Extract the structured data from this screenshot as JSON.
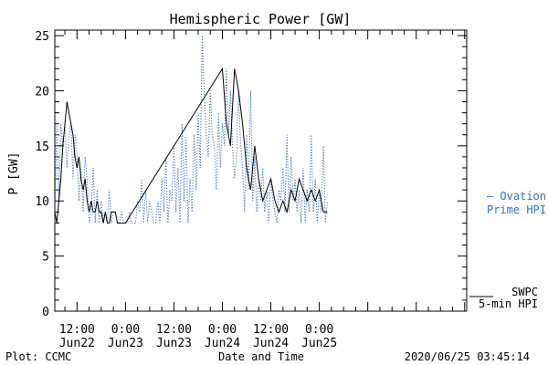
{
  "chart_data": {
    "type": "line",
    "title": "Hemispheric Power [GW]",
    "xlabel": "Date and Time",
    "ylabel": "P [GW]",
    "ylim": [
      0,
      25.5
    ],
    "y_ticks": [
      0,
      5,
      10,
      15,
      20,
      25
    ],
    "x_range_hours": [
      -17.5,
      84.5
    ],
    "x_tick_labels": [
      {
        "hour": -12,
        "line1": "12:00",
        "line2": "Jun22"
      },
      {
        "hour": 0,
        "line1": "0:00",
        "line2": "Jun23"
      },
      {
        "hour": 12,
        "line1": "12:00",
        "line2": "Jun23"
      },
      {
        "hour": 24,
        "line1": "0:00",
        "line2": "Jun24"
      },
      {
        "hour": 36,
        "line1": "12:00",
        "line2": "Jun24"
      },
      {
        "hour": 48,
        "line1": "0:00",
        "line2": "Jun25"
      }
    ],
    "series": [
      {
        "name": "Ovation Prime HPI",
        "color": "#2f6fc0",
        "style": "dotted",
        "x": [
          -17.5,
          -17,
          -16.5,
          -16,
          -15.5,
          -15,
          -14.5,
          -14,
          -13.5,
          -13,
          -12.5,
          -12,
          -11.5,
          -11,
          -10.5,
          -10,
          -9.5,
          -9,
          -8.5,
          -8,
          -7.5,
          -7,
          -6.5,
          -6,
          -5.5,
          -5,
          -4.5,
          -4,
          -3.5,
          -3,
          -2.5,
          -2,
          -1.5,
          -1,
          -0.5,
          0,
          0.5,
          1,
          1.5,
          2,
          2.5,
          3,
          3.5,
          4,
          4.5,
          5,
          5.5,
          6,
          6.5,
          7,
          7.5,
          8,
          8.5,
          9,
          9.5,
          10,
          10.5,
          11,
          11.5,
          12,
          12.5,
          13,
          13.5,
          14,
          14.5,
          15,
          15.5,
          16,
          16.5,
          17,
          17.5,
          18,
          18.5,
          19,
          19.5,
          20,
          20.5,
          21,
          21.5,
          22,
          22.5,
          23,
          23.5,
          24,
          24.5,
          25,
          25.5,
          26,
          26.5,
          27,
          27.5,
          28,
          28.5,
          29,
          29.5,
          30,
          30.5,
          31,
          31.5,
          32,
          32.5,
          33,
          33.5,
          34,
          34.5,
          35,
          35.5,
          36,
          36.5,
          37,
          37.5,
          38,
          38.5,
          39,
          39.5,
          40,
          40.5,
          41,
          41.5,
          42,
          42.5,
          43,
          43.5,
          44,
          44.5,
          45,
          45.5,
          46,
          46.5,
          47,
          47.5,
          48,
          48.5,
          49,
          49.5,
          50
        ],
        "y": [
          8,
          17,
          10,
          17,
          15,
          17,
          13,
          16,
          17,
          12,
          16,
          14,
          10,
          13,
          9,
          14,
          12,
          8,
          9,
          13,
          8,
          11,
          8,
          10,
          8,
          9,
          8,
          11,
          8,
          9,
          9,
          8,
          8,
          9,
          8,
          8,
          8,
          9,
          8,
          8,
          8,
          10,
          9,
          12,
          8,
          11,
          8,
          10,
          9,
          8,
          8,
          10,
          8,
          12,
          9,
          14,
          8,
          11,
          10,
          15,
          9,
          13,
          8,
          17,
          10,
          16,
          8,
          12,
          9,
          16,
          11,
          18,
          13,
          25,
          20,
          16,
          14,
          20,
          16,
          15,
          11,
          18,
          13,
          17,
          15,
          22,
          16,
          20,
          15,
          12,
          14,
          20,
          15,
          13,
          9,
          16,
          11,
          20,
          10,
          14,
          9,
          12,
          10,
          13,
          9,
          11,
          8,
          12,
          10,
          9,
          8,
          11,
          10,
          13,
          9,
          16,
          9,
          14,
          10,
          12,
          9,
          11,
          8,
          13,
          8,
          11,
          9,
          16,
          9,
          12,
          8,
          11,
          9,
          15,
          8,
          10
        ]
      },
      {
        "name": "SWPC 5-min HPI",
        "color": "#000000",
        "style": "solid",
        "x": [
          -17.5,
          -17,
          -16.5,
          -16,
          -15.5,
          -15,
          -14.5,
          -14,
          -13.5,
          -13,
          -12.5,
          -12,
          -11.5,
          -11,
          -10.5,
          -10,
          -9.5,
          -9,
          -8.5,
          -8,
          -7.5,
          -7,
          -6.5,
          -6,
          -5.5,
          -5,
          -4.5,
          -4,
          -3.5,
          -3,
          -2.5,
          -2,
          -1.5,
          -1,
          -0.5,
          0,
          24,
          25,
          26,
          27,
          28,
          29,
          30,
          31,
          32,
          33,
          34,
          35,
          36,
          37,
          38,
          39,
          40,
          41,
          42,
          43,
          44,
          45,
          46,
          47,
          48,
          49,
          50
        ],
        "y": [
          9,
          8,
          10,
          12,
          15,
          17,
          19,
          18,
          17,
          16,
          14,
          13,
          14,
          12,
          11,
          12,
          10,
          9,
          10,
          9,
          9,
          10,
          9,
          9,
          8,
          9,
          8,
          8,
          9,
          9,
          9,
          8,
          8,
          8,
          8,
          8,
          22,
          17,
          15,
          22,
          20,
          17,
          13,
          11,
          15,
          12,
          10,
          11,
          12,
          10,
          9,
          10,
          9,
          11,
          10,
          12,
          11,
          10,
          11,
          10,
          11,
          9,
          9
        ]
      }
    ],
    "legend": [
      {
        "line1": "— Ovation",
        "line2": "Prime HPI",
        "color": "#2f6fc0"
      },
      {
        "line1": "SWPC",
        "line2": "5-min HPI",
        "color": "#000000"
      }
    ],
    "footer": {
      "left": "Plot: CCMC",
      "center": "Date and Time",
      "right": "2020/06/25 03:45:14"
    }
  }
}
